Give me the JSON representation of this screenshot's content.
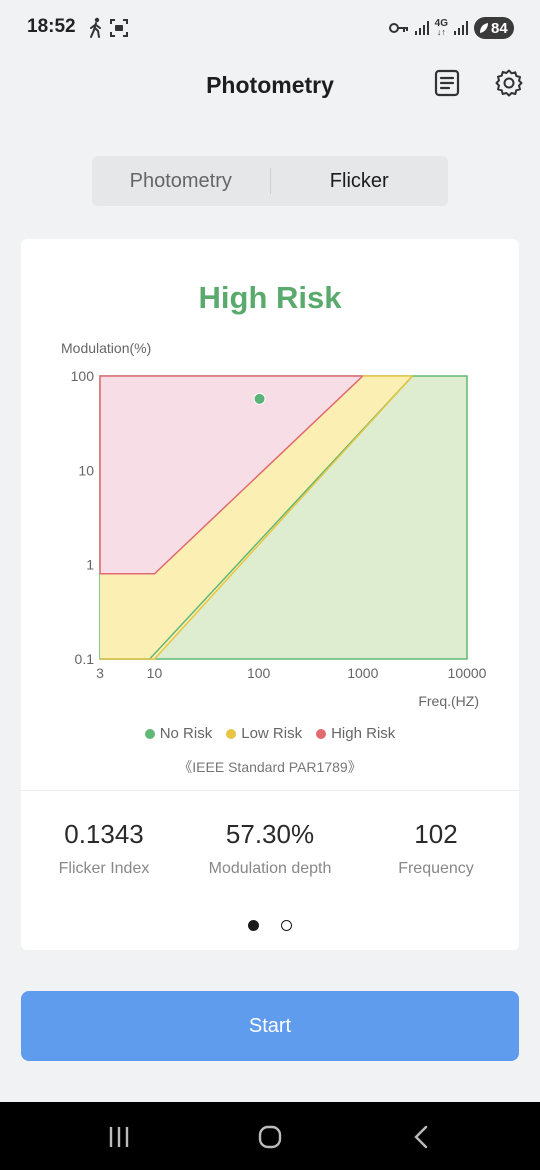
{
  "status_bar": {
    "time": "18:52",
    "network_label": "4G",
    "battery": "84",
    "icons": [
      "walking-person-icon",
      "screen-record-icon",
      "key-icon",
      "signal-icon",
      "signal-4g-icon",
      "signal-icon",
      "battery-icon"
    ]
  },
  "header": {
    "title": "Photometry",
    "icons": [
      "document-icon",
      "gear-icon"
    ]
  },
  "tabs": {
    "items": [
      {
        "label": "Photometry",
        "active": false
      },
      {
        "label": "Flicker",
        "active": true
      }
    ]
  },
  "card": {
    "risk_title": "High Risk",
    "standard_note": "《IEEE Standard PAR1789》",
    "metrics": [
      {
        "value": "0.1343",
        "label": "Flicker Index"
      },
      {
        "value": "57.30%",
        "label": "Modulation depth"
      },
      {
        "value": "102",
        "label": "Frequency"
      }
    ],
    "pager": {
      "pages": 2,
      "current": 1
    }
  },
  "chart_data": {
    "type": "scatter",
    "ylabel": "Modulation(%)",
    "xlabel": "Freq.(HZ)",
    "x_scale": "log",
    "y_scale": "log",
    "xlim": [
      3,
      10000
    ],
    "ylim": [
      0.1,
      100
    ],
    "x_ticks": [
      "3",
      "10",
      "100",
      "1000",
      "10000"
    ],
    "y_ticks": [
      "100",
      "10",
      "1",
      "0.1"
    ],
    "grid": true,
    "legend_position": "bottom",
    "regions": [
      {
        "name": "No Risk",
        "color": "#61b876",
        "fill": "#deedcf",
        "boundary": [
          [
            3,
            0.03
          ],
          [
            9,
            0.03
          ],
          [
            3000,
            100
          ]
        ]
      },
      {
        "name": "Low Risk",
        "color": "#e8c544",
        "fill": "#fcefb4",
        "boundary": [
          [
            3,
            0.08
          ],
          [
            10,
            0.08
          ],
          [
            3000,
            100
          ]
        ]
      },
      {
        "name": "High Risk",
        "color": "#e06a6f",
        "fill": "#f7dde6",
        "boundary": [
          [
            3,
            0.8
          ],
          [
            10,
            0.8
          ],
          [
            1000,
            100
          ]
        ]
      }
    ],
    "points": [
      {
        "x": 102,
        "y": 57.3,
        "color": "#5cb377"
      }
    ]
  },
  "start_button": {
    "label": "Start"
  },
  "nav_bar": {
    "icons": [
      "recents-icon",
      "home-icon",
      "back-icon"
    ]
  }
}
